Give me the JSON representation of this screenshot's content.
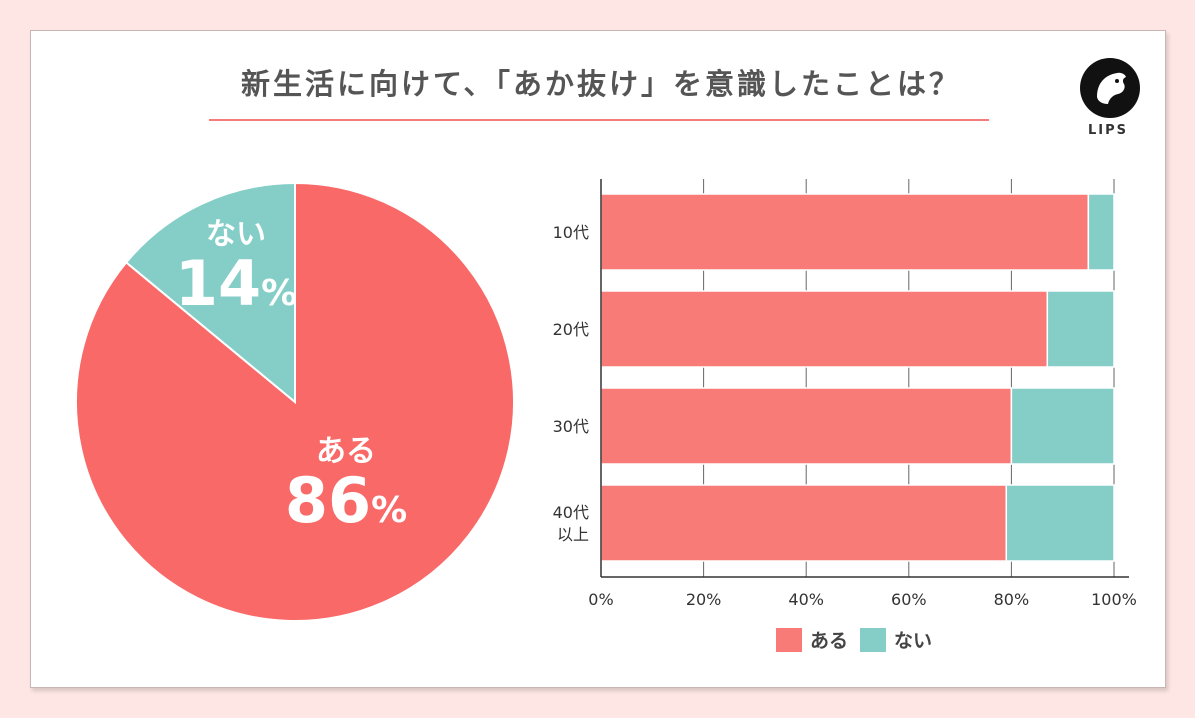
{
  "title": "新生活に向けて、「あか抜け」を意識したことは？",
  "logo": {
    "text": "LIPS"
  },
  "colors": {
    "aru": "#f96968",
    "nai": "#84cec7",
    "aru_bar": "#f97b78"
  },
  "chart_data": [
    {
      "type": "pie",
      "slices": [
        {
          "name": "ある",
          "value": 86,
          "label": "86"
        },
        {
          "name": "ない",
          "value": 14,
          "label": "14"
        }
      ],
      "percent_sign": "%"
    },
    {
      "type": "bar",
      "orientation": "horizontal",
      "stacked": true,
      "categories": [
        "10代",
        "20代",
        "30代",
        "40代\n以上"
      ],
      "series": [
        {
          "name": "ある",
          "values": [
            95,
            87,
            80,
            79
          ]
        },
        {
          "name": "ない",
          "values": [
            5,
            13,
            20,
            21
          ]
        }
      ],
      "xlim": [
        0,
        100
      ],
      "xticks": [
        "0%",
        "20%",
        "40%",
        "60%",
        "80%",
        "100%"
      ],
      "grid": true,
      "legend": "bottom",
      "legend_entries": [
        "ある",
        "ない"
      ]
    }
  ]
}
